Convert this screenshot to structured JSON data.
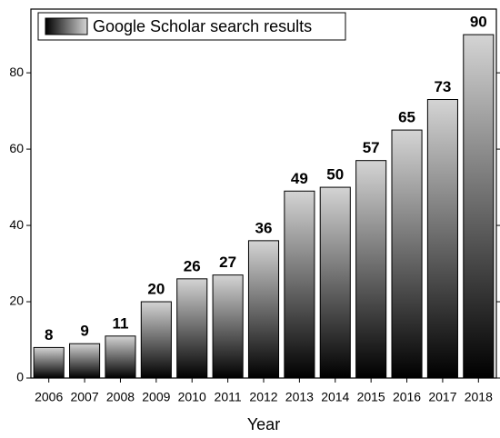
{
  "chart_data": {
    "type": "bar",
    "x_label": "Year",
    "categories": [
      "2006",
      "2007",
      "2008",
      "2009",
      "2010",
      "2011",
      "2012",
      "2013",
      "2014",
      "2015",
      "2016",
      "2017",
      "2018"
    ],
    "series": [
      {
        "name": "Google Scholar search results",
        "gradient": [
          "#d4d4d4",
          "#000000"
        ],
        "values": [
          8,
          9,
          11,
          20,
          26,
          27,
          36,
          49,
          50,
          57,
          65,
          73,
          90
        ]
      }
    ],
    "ylim": [
      0,
      96.7
    ],
    "yticks": [
      0,
      20,
      40,
      60,
      80
    ],
    "legend": "upper left",
    "data_labels": true
  }
}
